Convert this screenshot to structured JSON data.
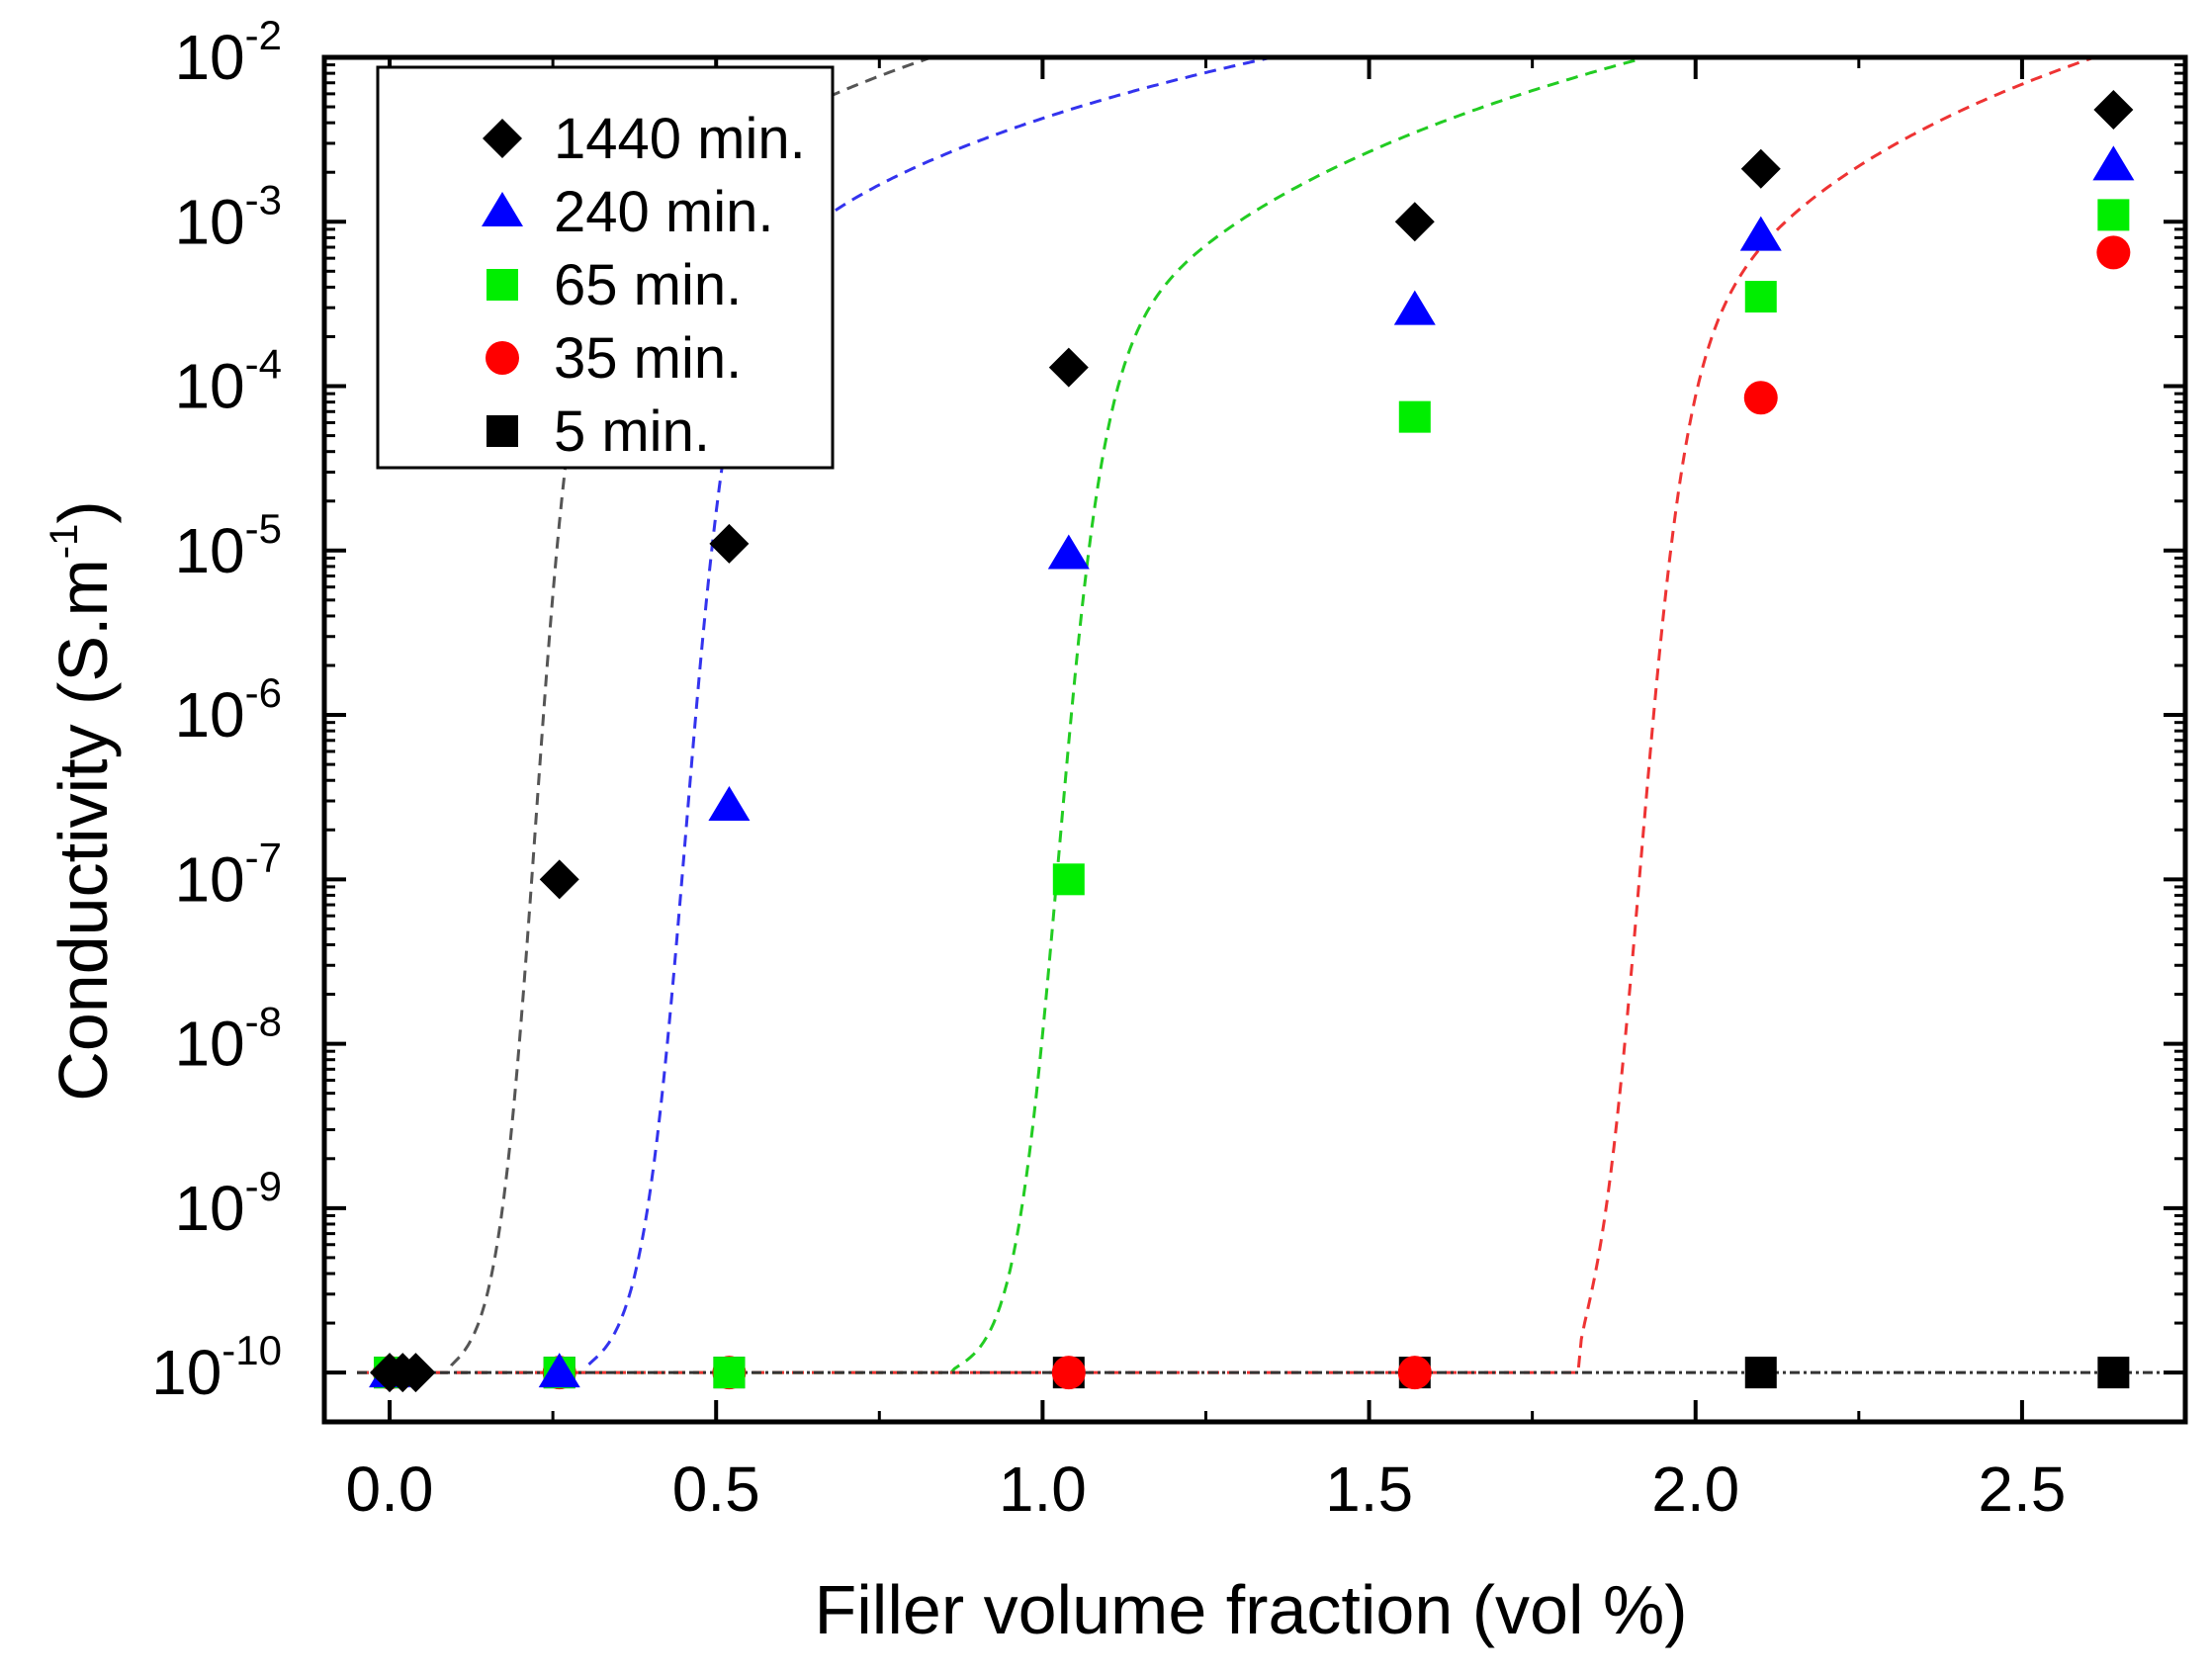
{
  "chart_data": {
    "type": "scatter",
    "title": "",
    "xlabel": "Filler volume fraction (vol %)",
    "ylabel": "Conductivity (S.m",
    "ylabel_superscript": "-1",
    "ylabel_close": ")",
    "xlim": [
      -0.1,
      2.75
    ],
    "ylim_log10": [
      -10.3,
      -2
    ],
    "y_scale": "log",
    "x_ticks": [
      {
        "value": 0.0,
        "label": "0.0"
      },
      {
        "value": 0.5,
        "label": "0.5"
      },
      {
        "value": 1.0,
        "label": "1.0"
      },
      {
        "value": 1.5,
        "label": "1.5"
      },
      {
        "value": 2.0,
        "label": "2.0"
      },
      {
        "value": 2.5,
        "label": "2.5"
      }
    ],
    "y_ticks": [
      {
        "exp": -2,
        "base": "10",
        "sup": "-2"
      },
      {
        "exp": -3,
        "base": "10",
        "sup": "-3"
      },
      {
        "exp": -4,
        "base": "10",
        "sup": "-4"
      },
      {
        "exp": -5,
        "base": "10",
        "sup": "-5"
      },
      {
        "exp": -6,
        "base": "10",
        "sup": "-6"
      },
      {
        "exp": -7,
        "base": "10",
        "sup": "-7"
      },
      {
        "exp": -8,
        "base": "10",
        "sup": "-8"
      },
      {
        "exp": -9,
        "base": "10",
        "sup": "-9"
      },
      {
        "exp": -10,
        "base": "10",
        "sup": "-10"
      }
    ],
    "legend_position": "top-left",
    "series": [
      {
        "name": "1440 min.",
        "marker": "diamond",
        "color": "#000000",
        "fit_color": "#555555",
        "x": [
          0.0,
          0.02,
          0.04,
          0.26,
          0.52,
          1.04,
          1.57,
          2.1,
          2.64
        ],
        "y": [
          1e-10,
          1e-10,
          1e-10,
          1e-07,
          1.1e-05,
          0.00013,
          0.001,
          0.0021,
          0.0048
        ],
        "fit": {
          "xc": 0.09,
          "k": 2.0,
          "t": 2.3,
          "sigma0": 0.02,
          "center": 0.22,
          "width": 0.03
        }
      },
      {
        "name": "240 min.",
        "marker": "triangle",
        "color": "#0000ff",
        "fit_color": "#3333ee",
        "x": [
          0.0,
          0.26,
          0.52,
          1.04,
          1.57,
          2.1,
          2.64
        ],
        "y": [
          1e-10,
          1e-10,
          2.8e-07,
          9.5e-06,
          0.00029,
          0.00082,
          0.0022
        ],
        "fit": {
          "xc": 0.3,
          "k": 2.0,
          "t": 2.1,
          "sigma0": 0.009,
          "center": 0.45,
          "width": 0.035
        }
      },
      {
        "name": "65 min.",
        "marker": "square",
        "color": "#00ee00",
        "fit_color": "#22cc22",
        "x": [
          0.0,
          0.26,
          0.52,
          1.04,
          1.57,
          2.1,
          2.64
        ],
        "y": [
          1e-10,
          1e-10,
          1e-10,
          1e-07,
          6.5e-05,
          0.00035,
          0.0011
        ],
        "fit": {
          "xc": 0.86,
          "k": 2.0,
          "t": 2.6,
          "sigma0": 0.0085,
          "center": 1.02,
          "width": 0.035
        }
      },
      {
        "name": "35 min.",
        "marker": "circle",
        "color": "#ff0000",
        "fit_color": "#ee3333",
        "x": [
          0.0,
          0.26,
          0.52,
          1.04,
          1.57,
          2.1,
          2.64
        ],
        "y": [
          1e-10,
          1e-10,
          1e-10,
          1e-10,
          1e-10,
          8.5e-05,
          0.00065
        ],
        "fit": {
          "xc": 1.82,
          "k": 2.0,
          "t": 2.5,
          "sigma0": 0.018,
          "center": 1.91,
          "width": 0.035
        }
      },
      {
        "name": "5 min.",
        "marker": "square",
        "color": "#000000",
        "fit_color": "#333333",
        "x": [
          0.0,
          0.26,
          0.52,
          1.04,
          1.57,
          2.1,
          2.64
        ],
        "y": [
          1e-10,
          1e-10,
          1e-10,
          1e-10,
          1e-10,
          1e-10,
          1e-10
        ],
        "fit": null
      }
    ]
  }
}
